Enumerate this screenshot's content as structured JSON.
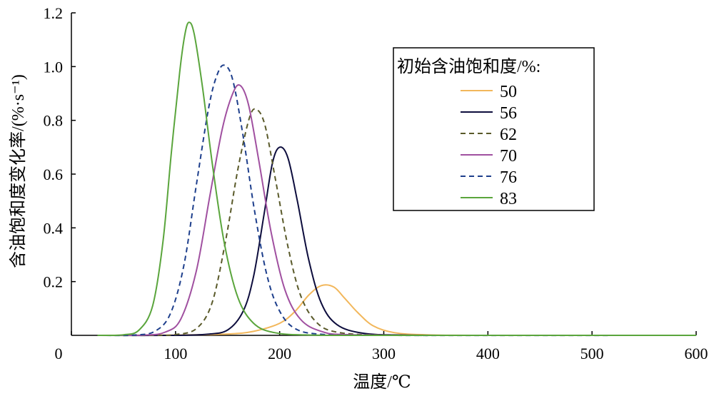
{
  "chart_data": {
    "type": "line",
    "xlabel": "温度/℃",
    "ylabel": "含油饱和度变化率/(%·s⁻¹)",
    "xlim": [
      0,
      600
    ],
    "ylim": [
      0,
      1.2
    ],
    "xticks": [
      "0",
      "100",
      "200",
      "300",
      "400",
      "500",
      "600"
    ],
    "yticks": [
      "0.2",
      "0.4",
      "0.6",
      "0.8",
      "1.0",
      "1.2"
    ],
    "grid": false,
    "legend": {
      "title": "初始含油饱和度/%:",
      "position": "top-right"
    },
    "series": [
      {
        "name": "50",
        "color": "#f2b75b",
        "dash": "solid",
        "points": [
          [
            25,
            0
          ],
          [
            100,
            0.001
          ],
          [
            150,
            0.005
          ],
          [
            175,
            0.015
          ],
          [
            200,
            0.045
          ],
          [
            215,
            0.09
          ],
          [
            228,
            0.15
          ],
          [
            240,
            0.185
          ],
          [
            252,
            0.18
          ],
          [
            262,
            0.14
          ],
          [
            275,
            0.085
          ],
          [
            290,
            0.035
          ],
          [
            310,
            0.01
          ],
          [
            340,
            0.002
          ],
          [
            400,
            0
          ],
          [
            600,
            0
          ]
        ]
      },
      {
        "name": "56",
        "color": "#0d0d3d",
        "dash": "solid",
        "points": [
          [
            25,
            0
          ],
          [
            100,
            0
          ],
          [
            130,
            0.004
          ],
          [
            150,
            0.02
          ],
          [
            165,
            0.09
          ],
          [
            175,
            0.22
          ],
          [
            185,
            0.45
          ],
          [
            193,
            0.64
          ],
          [
            200,
            0.7
          ],
          [
            208,
            0.66
          ],
          [
            217,
            0.5
          ],
          [
            228,
            0.28
          ],
          [
            240,
            0.12
          ],
          [
            255,
            0.04
          ],
          [
            280,
            0.008
          ],
          [
            320,
            0.001
          ],
          [
            400,
            0
          ],
          [
            600,
            0
          ]
        ]
      },
      {
        "name": "62",
        "color": "#5a5a2a",
        "dash": "dashed",
        "points": [
          [
            25,
            0
          ],
          [
            80,
            0
          ],
          [
            100,
            0.003
          ],
          [
            120,
            0.025
          ],
          [
            135,
            0.12
          ],
          [
            148,
            0.35
          ],
          [
            160,
            0.62
          ],
          [
            171,
            0.81
          ],
          [
            178,
            0.84
          ],
          [
            186,
            0.78
          ],
          [
            196,
            0.58
          ],
          [
            208,
            0.33
          ],
          [
            220,
            0.15
          ],
          [
            235,
            0.05
          ],
          [
            255,
            0.012
          ],
          [
            300,
            0.001
          ],
          [
            400,
            0
          ],
          [
            600,
            0
          ]
        ]
      },
      {
        "name": "70",
        "color": "#a050a0",
        "dash": "solid",
        "points": [
          [
            25,
            0
          ],
          [
            70,
            0.001
          ],
          [
            90,
            0.012
          ],
          [
            105,
            0.06
          ],
          [
            120,
            0.24
          ],
          [
            133,
            0.52
          ],
          [
            145,
            0.77
          ],
          [
            155,
            0.9
          ],
          [
            162,
            0.93
          ],
          [
            170,
            0.86
          ],
          [
            180,
            0.65
          ],
          [
            192,
            0.38
          ],
          [
            205,
            0.17
          ],
          [
            220,
            0.06
          ],
          [
            240,
            0.015
          ],
          [
            270,
            0.002
          ],
          [
            400,
            0
          ],
          [
            600,
            0
          ]
        ]
      },
      {
        "name": "76",
        "color": "#1e3f8c",
        "dash": "dashed",
        "points": [
          [
            25,
            0
          ],
          [
            60,
            0.001
          ],
          [
            80,
            0.015
          ],
          [
            95,
            0.08
          ],
          [
            108,
            0.26
          ],
          [
            120,
            0.56
          ],
          [
            132,
            0.85
          ],
          [
            140,
            0.97
          ],
          [
            147,
            1.005
          ],
          [
            155,
            0.95
          ],
          [
            165,
            0.74
          ],
          [
            176,
            0.46
          ],
          [
            188,
            0.22
          ],
          [
            200,
            0.09
          ],
          [
            215,
            0.025
          ],
          [
            240,
            0.004
          ],
          [
            300,
            0
          ],
          [
            600,
            0
          ]
        ]
      },
      {
        "name": "83",
        "color": "#5aa53c",
        "dash": "solid",
        "points": [
          [
            25,
            0
          ],
          [
            50,
            0.002
          ],
          [
            65,
            0.02
          ],
          [
            78,
            0.11
          ],
          [
            88,
            0.35
          ],
          [
            96,
            0.68
          ],
          [
            104,
            0.98
          ],
          [
            109,
            1.12
          ],
          [
            113,
            1.165
          ],
          [
            118,
            1.12
          ],
          [
            126,
            0.92
          ],
          [
            136,
            0.62
          ],
          [
            147,
            0.34
          ],
          [
            160,
            0.14
          ],
          [
            175,
            0.045
          ],
          [
            195,
            0.01
          ],
          [
            230,
            0.001
          ],
          [
            300,
            0
          ],
          [
            600,
            0
          ]
        ]
      }
    ]
  }
}
